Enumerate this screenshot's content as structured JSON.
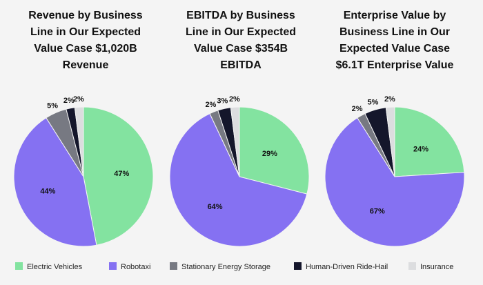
{
  "colors": {
    "Electric Vehicles": "#83e3a0",
    "Robotaxi": "#8571f2",
    "Stationary Energy Storage": "#777982",
    "Human-Driven Ride-Hail": "#14162b",
    "Insurance": "#dcdddf"
  },
  "legend": [
    "Electric Vehicles",
    "Robotaxi",
    "Stationary Energy Storage",
    "Human-Driven Ride-Hail",
    "Insurance"
  ],
  "chart_data": [
    {
      "type": "pie",
      "title_lines": [
        "Revenue by Business",
        "Line in Our Expected",
        "Value Case $1,020B",
        "Revenue"
      ],
      "slices": [
        {
          "name": "Electric Vehicles",
          "value": 47,
          "label": "47%"
        },
        {
          "name": "Robotaxi",
          "value": 44,
          "label": "44%"
        },
        {
          "name": "Stationary Energy Storage",
          "value": 5,
          "label": "5%"
        },
        {
          "name": "Human-Driven Ride-Hail",
          "value": 2,
          "label": "2%"
        },
        {
          "name": "Insurance",
          "value": 2,
          "label": "2%"
        }
      ]
    },
    {
      "type": "pie",
      "title_lines": [
        "EBITDA by Business",
        "Line in Our Expected",
        "Value Case $354B",
        "EBITDA"
      ],
      "slices": [
        {
          "name": "Electric Vehicles",
          "value": 29,
          "label": "29%"
        },
        {
          "name": "Robotaxi",
          "value": 64,
          "label": "64%"
        },
        {
          "name": "Stationary Energy Storage",
          "value": 2,
          "label": "2%"
        },
        {
          "name": "Human-Driven Ride-Hail",
          "value": 3,
          "label": "3%"
        },
        {
          "name": "Insurance",
          "value": 2,
          "label": "2%"
        }
      ]
    },
    {
      "type": "pie",
      "title_lines": [
        "Enterprise Value by",
        "Business Line in Our",
        "Expected Value Case",
        "$6.1T Enterprise Value"
      ],
      "slices": [
        {
          "name": "Electric Vehicles",
          "value": 24,
          "label": "24%"
        },
        {
          "name": "Robotaxi",
          "value": 67,
          "label": "67%"
        },
        {
          "name": "Stationary Energy Storage",
          "value": 2,
          "label": "2%"
        },
        {
          "name": "Human-Driven Ride-Hail",
          "value": 5,
          "label": "5%"
        },
        {
          "name": "Insurance",
          "value": 2,
          "label": "2%"
        }
      ]
    }
  ]
}
